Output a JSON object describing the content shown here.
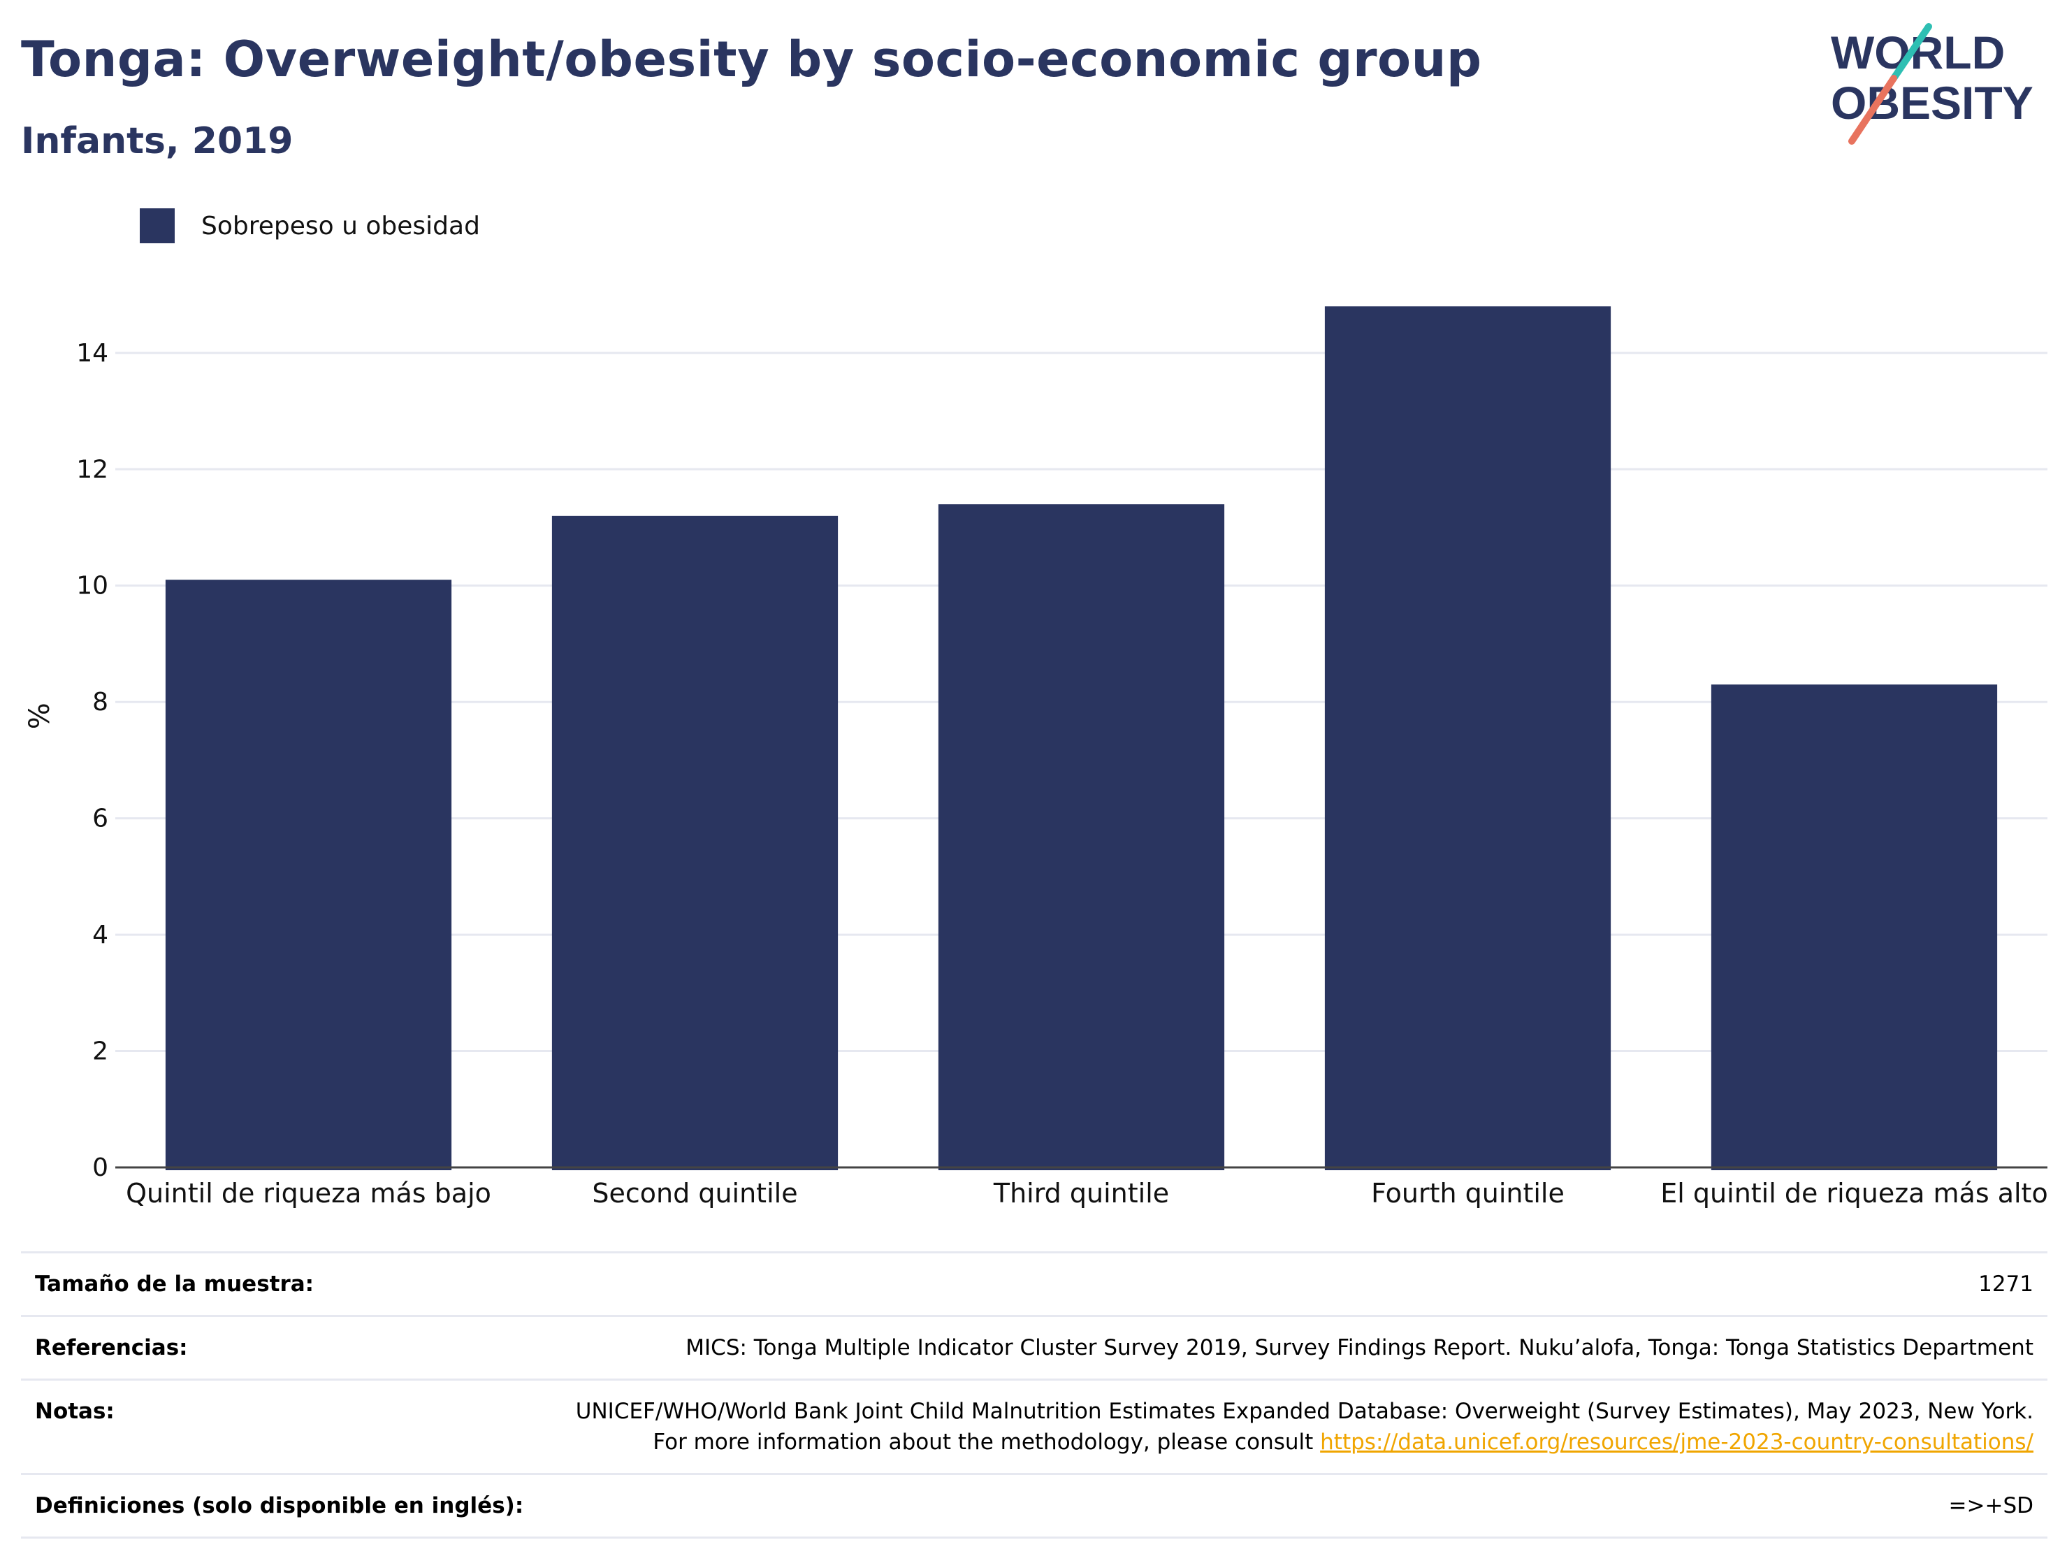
{
  "header": {
    "title": "Tonga: Overweight/obesity by socio-economic group",
    "subtitle": "Infants, 2019"
  },
  "logo": {
    "line1": "WORLD",
    "line2": "OBESITY"
  },
  "colors": {
    "bar": "#2a3560",
    "title": "#2a3560",
    "logo_teal": "#2ebfb3",
    "logo_coral": "#e8735e",
    "grid": "#e6e8f0",
    "link": "#f0a500"
  },
  "chart_data": {
    "type": "bar",
    "categories": [
      "Quintil de riqueza más bajo",
      "Second quintile",
      "Third quintile",
      "Fourth quintile",
      "El quintil de riqueza más alto"
    ],
    "series": [
      {
        "name": "Sobrepeso u obesidad",
        "values": [
          10.1,
          11.2,
          11.4,
          14.8,
          8.3
        ]
      }
    ],
    "ylabel": "%",
    "ylim": [
      0,
      15.5
    ],
    "yticks": [
      0,
      2,
      4,
      6,
      8,
      10,
      12,
      14
    ],
    "grid": true,
    "legend_position": "top-left"
  },
  "meta": {
    "sample_label": "Tamaño de la muestra:",
    "sample_value": "1271",
    "references_label": "Referencias:",
    "references_value": "MICS: Tonga Multiple Indicator Cluster Survey 2019, Survey Findings Report. Nuku’alofa, Tonga: Tonga Statistics Department",
    "notes_label": "Notas:",
    "notes_text": "UNICEF/WHO/World Bank Joint Child Malnutrition Estimates Expanded Database: Overweight (Survey Estimates), May 2023, New York. For more information about the methodology, please consult",
    "notes_link": "https://data.unicef.org/resources/jme-2023-country-consultations/",
    "definitions_label": "Definiciones (solo disponible en inglés):",
    "definitions_value": "=>+SD"
  }
}
